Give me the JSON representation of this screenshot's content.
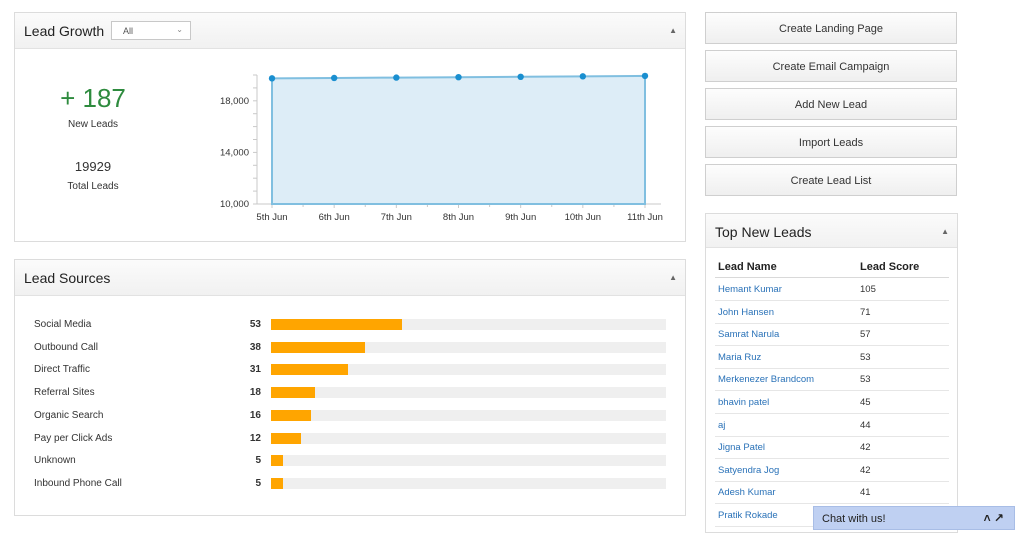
{
  "lead_growth": {
    "title": "Lead Growth",
    "filter_value": "All",
    "new_leads_value": "+ 187",
    "new_leads_label": "New Leads",
    "total_leads_value": "19929",
    "total_leads_label": "Total Leads"
  },
  "chart_data": {
    "type": "area",
    "categories": [
      "5th Jun",
      "6th Jun",
      "7th Jun",
      "8th Jun",
      "9th Jun",
      "10th Jun",
      "11th Jun"
    ],
    "values": [
      19742,
      19770,
      19800,
      19830,
      19860,
      19895,
      19929
    ],
    "ylim": [
      10000,
      20000
    ],
    "yticks": [
      "10,000",
      "14,000",
      "18,000"
    ],
    "ytick_values": [
      10000,
      14000,
      18000
    ],
    "fill_color": "#ddedf7",
    "line_color": "#80bfe0",
    "point_color": "#1a8fd0"
  },
  "lead_sources": {
    "title": "Lead Sources",
    "max": 160,
    "bar_color": "#ffa500",
    "items": [
      {
        "label": "Social Media",
        "count": "53",
        "value": 53
      },
      {
        "label": "Outbound Call",
        "count": "38",
        "value": 38
      },
      {
        "label": "Direct Traffic",
        "count": "31",
        "value": 31
      },
      {
        "label": "Referral Sites",
        "count": "18",
        "value": 18
      },
      {
        "label": "Organic Search",
        "count": "16",
        "value": 16
      },
      {
        "label": "Pay per Click Ads",
        "count": "12",
        "value": 12
      },
      {
        "label": "Unknown",
        "count": "5",
        "value": 5
      },
      {
        "label": "Inbound Phone Call",
        "count": "5",
        "value": 5
      }
    ]
  },
  "actions": [
    "Create Landing Page",
    "Create Email Campaign",
    "Add New Lead",
    "Import Leads",
    "Create Lead List"
  ],
  "top_leads": {
    "title": "Top New Leads",
    "col_name": "Lead Name",
    "col_score": "Lead Score",
    "rows": [
      {
        "name": "Hemant Kumar",
        "score": "105"
      },
      {
        "name": "John Hansen",
        "score": "71"
      },
      {
        "name": "Samrat Narula",
        "score": "57"
      },
      {
        "name": "Maria Ruz",
        "score": "53"
      },
      {
        "name": "Merkenezer Brandcom",
        "score": "53"
      },
      {
        "name": "bhavin patel",
        "score": "45"
      },
      {
        "name": "aj",
        "score": "44"
      },
      {
        "name": "Jigna Patel",
        "score": "42"
      },
      {
        "name": "Satyendra Jog",
        "score": "42"
      },
      {
        "name": "Adesh Kumar",
        "score": "41"
      },
      {
        "name": "Pratik Rokade",
        "score": ""
      }
    ]
  },
  "chat": {
    "label": "Chat with us!",
    "icons": "˄ ↗"
  },
  "icons": {
    "collapse": "▲",
    "dropdown": "⌄"
  }
}
